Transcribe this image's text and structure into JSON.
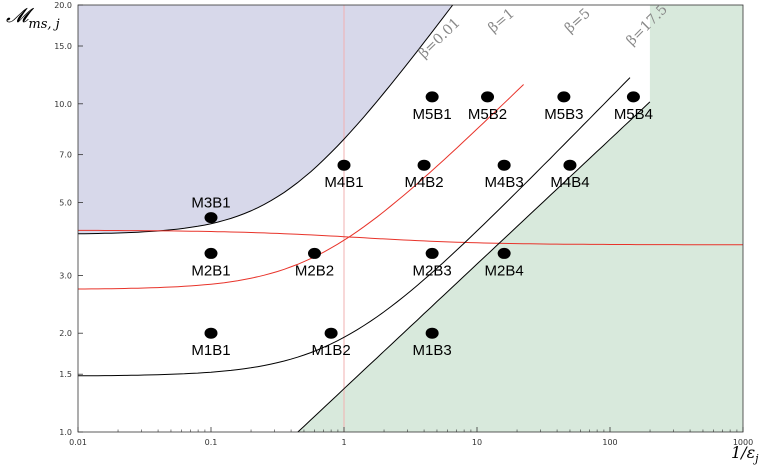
{
  "chart_data": {
    "type": "scatter",
    "title": "",
    "x_scale": "log",
    "y_scale": "log",
    "xlim": [
      0.01,
      1000
    ],
    "ylim": [
      1.0,
      20.0
    ],
    "xlabel": "1/ε_j",
    "ylabel": "𝓜_ms, j",
    "x_ticks": [
      "0.01",
      "0.1",
      "1",
      "10",
      "100",
      "1000"
    ],
    "y_ticks": [
      "1.0",
      "1.5",
      "2.0",
      "3.0",
      "5.0",
      "7.0",
      "10.0",
      "15.0",
      "20.0"
    ],
    "y_tick_values": [
      1.0,
      1.5,
      2.0,
      3.0,
      5.0,
      7.0,
      10.0,
      15.0,
      20.0
    ],
    "x_tick_values": [
      0.01,
      0.1,
      1,
      10,
      100,
      1000
    ],
    "colors": {
      "upper_region": "#d7d8ea",
      "lower_region": "#d8e9dc",
      "red_curves": "#e8332a",
      "vertical_line": "#f2b1b1",
      "black_curves": "#000000",
      "curve_labels": "#888888"
    },
    "curves": [
      {
        "name": "β=0.01",
        "color": "black",
        "boundary": "upper-shaded"
      },
      {
        "name": "β=1",
        "color": "red"
      },
      {
        "name": "β=5",
        "color": "black"
      },
      {
        "name": "β=17.5",
        "color": "black",
        "boundary": "lower-shaded"
      }
    ],
    "points": [
      {
        "label": "M1B1",
        "x": 0.1,
        "y": 2.0
      },
      {
        "label": "M1B2",
        "x": 0.8,
        "y": 2.0
      },
      {
        "label": "M1B3",
        "x": 4.6,
        "y": 2.0
      },
      {
        "label": "M2B1",
        "x": 0.1,
        "y": 3.5
      },
      {
        "label": "M2B2",
        "x": 0.6,
        "y": 3.5
      },
      {
        "label": "M2B3",
        "x": 4.6,
        "y": 3.5
      },
      {
        "label": "M2B4",
        "x": 16,
        "y": 3.5
      },
      {
        "label": "M3B1",
        "x": 0.1,
        "y": 4.5
      },
      {
        "label": "M4B1",
        "x": 1.0,
        "y": 6.5
      },
      {
        "label": "M4B2",
        "x": 4.0,
        "y": 6.5
      },
      {
        "label": "M4B3",
        "x": 16,
        "y": 6.5
      },
      {
        "label": "M4B4",
        "x": 50,
        "y": 6.5
      },
      {
        "label": "M5B1",
        "x": 4.6,
        "y": 10.5
      },
      {
        "label": "M5B2",
        "x": 12,
        "y": 10.5
      },
      {
        "label": "M5B3",
        "x": 45,
        "y": 10.5
      },
      {
        "label": "M5B4",
        "x": 150,
        "y": 10.5
      }
    ],
    "vertical_line_x": 1,
    "grid": false
  }
}
